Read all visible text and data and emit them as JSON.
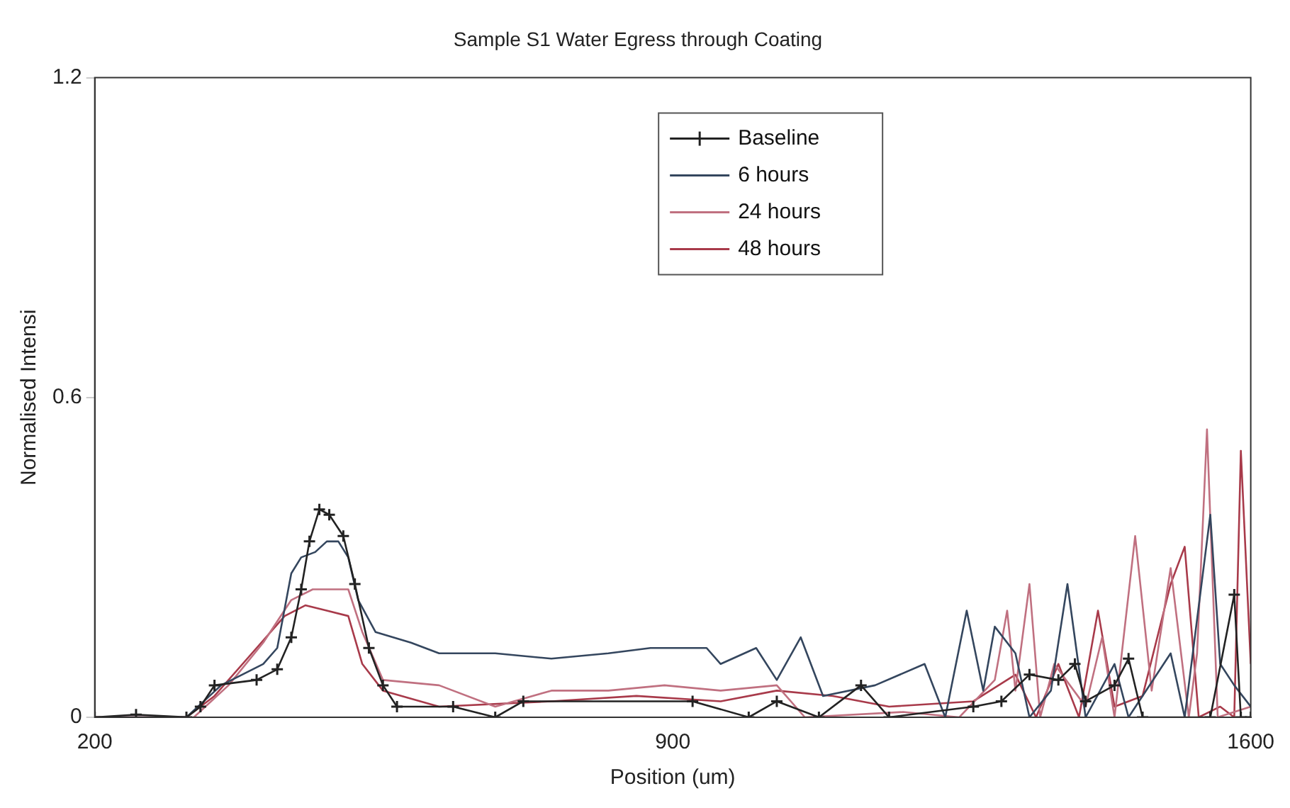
{
  "chart_data": {
    "type": "line",
    "title": "Sample S1 Water Egress through Coating",
    "xlabel": "Position (um)",
    "ylabel": "Normalised Intensi",
    "xlim": [
      200,
      1600
    ],
    "xticks": [
      200,
      900,
      1600
    ],
    "ylim": [
      0,
      1.2
    ],
    "yticks": [
      0,
      0.6,
      1.2
    ],
    "grid": false,
    "legend": "top",
    "line_style": "solid",
    "series": [
      {
        "name": "Baseline",
        "color": "#222222",
        "marker": "cross",
        "x": [
          200,
          250,
          311,
          328,
          345,
          396,
          421,
          438,
          450,
          460,
          472,
          484,
          501,
          515,
          532,
          549,
          566,
          634,
          685,
          719,
          924,
          992,
          1026,
          1077,
          1128,
          1162,
          1264,
          1298,
          1332,
          1367,
          1387,
          1400,
          1435,
          1452,
          1469,
          1551,
          1580,
          1588,
          1600
        ],
        "values": [
          0,
          0.005,
          0,
          0.02,
          0.06,
          0.07,
          0.09,
          0.15,
          0.24,
          0.33,
          0.39,
          0.38,
          0.34,
          0.25,
          0.13,
          0.06,
          0.02,
          0.02,
          0,
          0.03,
          0.03,
          0,
          0.03,
          0,
          0.06,
          0,
          0.02,
          0.03,
          0.08,
          0.07,
          0.1,
          0.03,
          0.06,
          0.11,
          0,
          0,
          0.23,
          0,
          0
        ]
      },
      {
        "name": "6 hours",
        "color": "#34465e",
        "marker": "none",
        "x": [
          200,
          311,
          353,
          404,
          421,
          438,
          450,
          467,
          481,
          495,
          507,
          519,
          540,
          583,
          617,
          685,
          753,
          822,
          873,
          941,
          958,
          1001,
          1026,
          1055,
          1082,
          1145,
          1205,
          1230,
          1256,
          1276,
          1290,
          1315,
          1332,
          1358,
          1378,
          1400,
          1435,
          1452,
          1503,
          1520,
          1551,
          1563,
          1580,
          1600
        ],
        "values": [
          0,
          0,
          0.06,
          0.1,
          0.13,
          0.27,
          0.3,
          0.31,
          0.33,
          0.33,
          0.3,
          0.22,
          0.16,
          0.14,
          0.12,
          0.12,
          0.11,
          0.12,
          0.13,
          0.13,
          0.1,
          0.13,
          0.07,
          0.15,
          0.04,
          0.06,
          0.1,
          0,
          0.2,
          0.05,
          0.17,
          0.12,
          0,
          0.05,
          0.25,
          0,
          0.1,
          0,
          0.12,
          0,
          0.38,
          0.1,
          0.06,
          0.02
        ]
      },
      {
        "name": "24 hours",
        "color": "#c07080",
        "marker": "none",
        "x": [
          200,
          320,
          362,
          404,
          438,
          464,
          507,
          524,
          549,
          617,
          685,
          753,
          822,
          890,
          958,
          1026,
          1060,
          1179,
          1247,
          1290,
          1305,
          1315,
          1332,
          1345,
          1362,
          1400,
          1420,
          1435,
          1460,
          1480,
          1503,
          1525,
          1535,
          1547,
          1560,
          1600
        ],
        "values": [
          0,
          0,
          0.06,
          0.14,
          0.22,
          0.24,
          0.24,
          0.16,
          0.07,
          0.06,
          0.02,
          0.05,
          0.05,
          0.06,
          0.05,
          0.06,
          0,
          0.01,
          0,
          0.07,
          0.2,
          0.05,
          0.25,
          0.0,
          0.1,
          0.02,
          0.15,
          0,
          0.34,
          0.05,
          0.28,
          0,
          0.12,
          0.54,
          0,
          0.02
        ]
      },
      {
        "name": "48 hours",
        "color": "#a83a4a",
        "marker": "none",
        "x": [
          200,
          311,
          345,
          396,
          430,
          455,
          481,
          507,
          524,
          549,
          617,
          753,
          856,
          958,
          1026,
          1094,
          1162,
          1264,
          1315,
          1340,
          1367,
          1392,
          1415,
          1435,
          1469,
          1503,
          1520,
          1537,
          1563,
          1580,
          1588,
          1600
        ],
        "values": [
          0,
          0,
          0.04,
          0.13,
          0.19,
          0.21,
          0.2,
          0.19,
          0.1,
          0.05,
          0.02,
          0.03,
          0.04,
          0.03,
          0.05,
          0.04,
          0.02,
          0.03,
          0.08,
          0,
          0.1,
          0,
          0.2,
          0.02,
          0.04,
          0.25,
          0.32,
          0,
          0.02,
          0,
          0.5,
          0.1
        ]
      }
    ]
  }
}
